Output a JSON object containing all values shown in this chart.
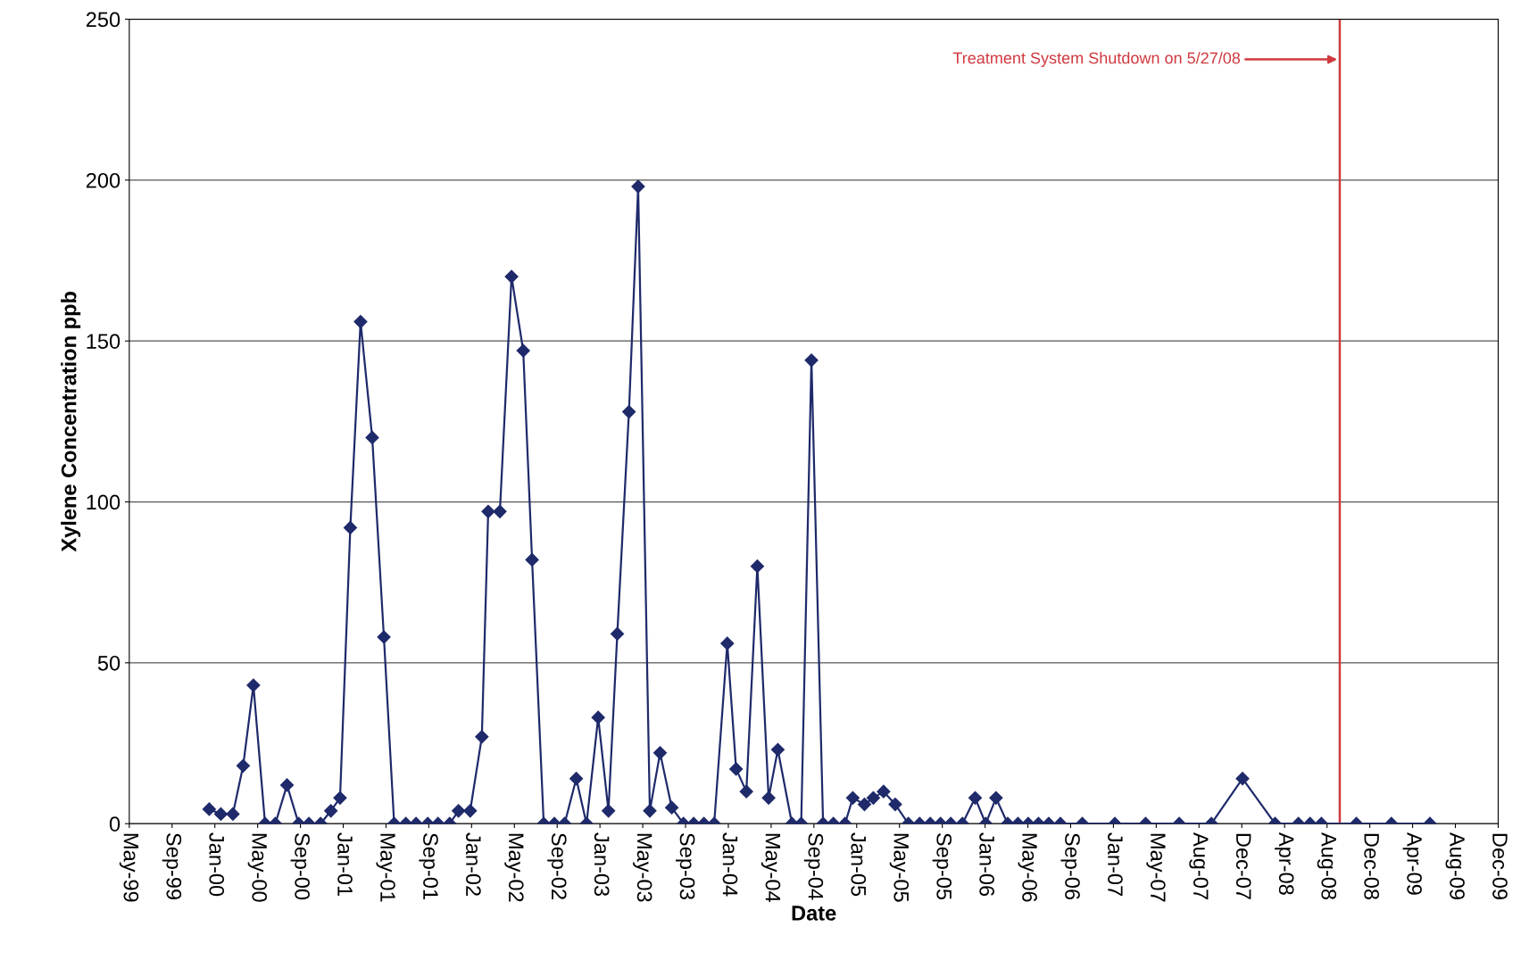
{
  "chart_data": {
    "type": "line",
    "xlabel": "Date",
    "ylabel": "Xylene Concentration ppb",
    "x": [
      "2000-01-01",
      "2000-02-03",
      "2000-03-08",
      "2000-04-06",
      "2000-05-05",
      "2000-06-07",
      "2000-07-06",
      "2000-08-08",
      "2000-09-10",
      "2000-10-09",
      "2000-11-11",
      "2000-12-10",
      "2001-01-05",
      "2001-02-03",
      "2001-03-04",
      "2001-04-06",
      "2001-05-09",
      "2001-06-07",
      "2001-07-10",
      "2001-08-08",
      "2001-09-10",
      "2001-10-09",
      "2001-11-11",
      "2001-12-06",
      "2002-01-08",
      "2002-02-10",
      "2002-02-28",
      "2002-04-02",
      "2002-05-05",
      "2002-06-07",
      "2002-07-02",
      "2002-08-04",
      "2002-09-03",
      "2002-10-02",
      "2002-11-04",
      "2002-12-03",
      "2003-01-05",
      "2003-02-03",
      "2003-02-28",
      "2003-04-02",
      "2003-04-28",
      "2003-05-31",
      "2003-06-29",
      "2003-08-01",
      "2003-09-03",
      "2003-10-02",
      "2003-10-31",
      "2003-11-29",
      "2004-01-05",
      "2004-01-30",
      "2004-02-28",
      "2004-03-30",
      "2004-05-01",
      "2004-05-27",
      "2004-07-06",
      "2004-08-01",
      "2004-08-30",
      "2004-10-02",
      "2004-10-31",
      "2004-12-03",
      "2004-12-25",
      "2005-01-27",
      "2005-02-21",
      "2005-03-22",
      "2005-04-24",
      "2005-05-31",
      "2005-07-02",
      "2005-08-01",
      "2005-08-30",
      "2005-09-28",
      "2005-10-31",
      "2005-12-06",
      "2006-01-05",
      "2006-02-03",
      "2006-03-08",
      "2006-04-06",
      "2006-05-05",
      "2006-06-03",
      "2006-07-02",
      "2006-08-04",
      "2006-10-05",
      "2007-01-05",
      "2007-04-02",
      "2007-07-06",
      "2007-10-05",
      "2008-01-01",
      "2008-04-02",
      "2008-06-07",
      "2008-07-10",
      "2008-08-11",
      "2008-11-18",
      "2009-02-25",
      "2009-06-14"
    ],
    "series": [
      {
        "color": "#1f2a6b",
        "marker": "diamond",
        "line_style": "solid",
        "values": [
          4.5,
          3,
          3,
          18,
          43,
          0,
          0,
          12,
          0,
          0,
          0,
          4,
          8,
          92,
          156,
          120,
          58,
          0,
          0,
          0,
          0,
          0,
          0,
          4,
          4,
          27,
          97,
          97,
          170,
          147,
          82,
          0,
          0,
          0,
          14,
          0,
          33,
          4,
          59,
          128,
          198,
          4,
          22,
          5,
          0,
          0,
          0,
          0,
          56,
          17,
          10,
          80,
          8,
          23,
          0,
          0,
          144,
          0,
          0,
          0,
          8,
          6,
          8,
          10,
          6,
          0,
          0,
          0,
          0,
          0,
          0,
          8,
          0,
          8,
          0,
          0,
          0,
          0,
          0,
          0,
          0,
          0,
          0,
          0,
          0,
          14,
          0,
          0,
          0,
          0,
          0,
          0,
          0
        ]
      }
    ],
    "xlim": [
      "1999-05-20",
      "2009-12-24"
    ],
    "ylim": [
      0,
      250
    ],
    "yticks": [
      0,
      50,
      100,
      150,
      200,
      250
    ],
    "xticks": [
      {
        "value": "1999-05-20",
        "label": "May-99"
      },
      {
        "value": "1999-09-18",
        "label": "Sep-99"
      },
      {
        "value": "2000-01-17",
        "label": "Jan-00"
      },
      {
        "value": "2000-05-17",
        "label": "May-00"
      },
      {
        "value": "2000-09-15",
        "label": "Sep-00"
      },
      {
        "value": "2001-01-14",
        "label": "Jan-01"
      },
      {
        "value": "2001-05-15",
        "label": "May-01"
      },
      {
        "value": "2001-09-13",
        "label": "Sep-01"
      },
      {
        "value": "2002-01-12",
        "label": "Jan-02"
      },
      {
        "value": "2002-05-13",
        "label": "May-02"
      },
      {
        "value": "2002-09-11",
        "label": "Sep-02"
      },
      {
        "value": "2003-01-10",
        "label": "Jan-03"
      },
      {
        "value": "2003-05-11",
        "label": "May-03"
      },
      {
        "value": "2003-09-09",
        "label": "Sep-03"
      },
      {
        "value": "2004-01-08",
        "label": "Jan-04"
      },
      {
        "value": "2004-05-08",
        "label": "May-04"
      },
      {
        "value": "2004-09-06",
        "label": "Sep-04"
      },
      {
        "value": "2005-01-05",
        "label": "Jan-05"
      },
      {
        "value": "2005-05-06",
        "label": "May-05"
      },
      {
        "value": "2005-09-04",
        "label": "Sep-05"
      },
      {
        "value": "2006-01-03",
        "label": "Jan-06"
      },
      {
        "value": "2006-05-04",
        "label": "May-06"
      },
      {
        "value": "2006-09-02",
        "label": "Sep-06"
      },
      {
        "value": "2007-01-01",
        "label": "Jan-07"
      },
      {
        "value": "2007-05-02",
        "label": "May-07"
      },
      {
        "value": "2007-08-31",
        "label": "Aug-07"
      },
      {
        "value": "2007-12-30",
        "label": "Dec-07"
      },
      {
        "value": "2008-04-29",
        "label": "Apr-08"
      },
      {
        "value": "2008-08-27",
        "label": "Aug-08"
      },
      {
        "value": "2008-12-26",
        "label": "Dec-08"
      },
      {
        "value": "2009-04-26",
        "label": "Apr-09"
      },
      {
        "value": "2009-08-25",
        "label": "Aug-09"
      },
      {
        "value": "2009-12-24",
        "label": "Dec-09"
      }
    ],
    "ref_lines": [
      {
        "axis": "x",
        "value": "2008-10-02",
        "label": "Treatment System Shutdown on 5/27/08",
        "color": "#d0393e"
      }
    ],
    "grid": "y",
    "legend": false
  }
}
